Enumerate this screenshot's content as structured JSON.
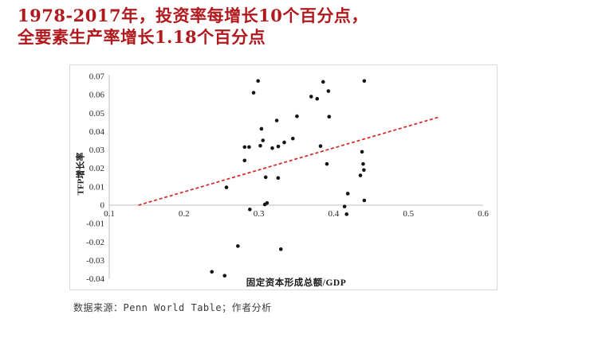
{
  "title": {
    "line1": "1978-2017年，投资率每增长10个百分点，",
    "line2": "全要素生产率增长1.18个百分点",
    "color": "#b01a1e"
  },
  "footer": {
    "source_text": "数据来源：Penn World Table；作者分析"
  },
  "chart_data": {
    "type": "scatter",
    "title": "",
    "xlabel": "固定资本形成总额/GDP",
    "ylabel": "TFP增长率",
    "xlim": [
      0.1,
      0.6
    ],
    "ylim": [
      -0.04,
      0.07
    ],
    "x_tick_labels": [
      "0.1",
      "0.2",
      "0.3",
      "0.4",
      "0.5",
      "0.6"
    ],
    "y_tick_labels": [
      "0.07",
      "0.06",
      "0.05",
      "0.04",
      "0.03",
      "0.02",
      "0.01",
      "0",
      "-0.01",
      "-0.02",
      "-0.03",
      "-0.04"
    ],
    "grid": false,
    "legend": null,
    "axis_color": "#bfbfbf",
    "point_color": "#141414",
    "points": [
      [
        0.299,
        0.0675
      ],
      [
        0.293,
        0.0611
      ],
      [
        0.386,
        0.067
      ],
      [
        0.393,
        0.062
      ],
      [
        0.441,
        0.0675
      ],
      [
        0.37,
        0.059
      ],
      [
        0.378,
        0.0578
      ],
      [
        0.351,
        0.0483
      ],
      [
        0.394,
        0.0481
      ],
      [
        0.324,
        0.046
      ],
      [
        0.3035,
        0.0415
      ],
      [
        0.3455,
        0.0362
      ],
      [
        0.3055,
        0.0352
      ],
      [
        0.334,
        0.0341
      ],
      [
        0.326,
        0.0319
      ],
      [
        0.302,
        0.0323
      ],
      [
        0.318,
        0.031
      ],
      [
        0.281,
        0.0316
      ],
      [
        0.287,
        0.0316
      ],
      [
        0.3825,
        0.0321
      ],
      [
        0.438,
        0.029
      ],
      [
        0.281,
        0.0243
      ],
      [
        0.391,
        0.0224
      ],
      [
        0.4395,
        0.0224
      ],
      [
        0.4405,
        0.0191
      ],
      [
        0.3092,
        0.0152
      ],
      [
        0.3258,
        0.0148
      ],
      [
        0.4358,
        0.0162
      ],
      [
        0.2567,
        0.0097
      ],
      [
        0.419,
        0.0063
      ],
      [
        0.441,
        0.0026
      ],
      [
        0.308,
        0.0004
      ],
      [
        0.311,
        0.0012
      ],
      [
        0.288,
        -0.0023
      ],
      [
        0.4146,
        -0.0007
      ],
      [
        0.4174,
        -0.0049
      ],
      [
        0.272,
        -0.0222
      ],
      [
        0.3295,
        -0.0239
      ],
      [
        0.2372,
        -0.0362
      ],
      [
        0.2543,
        -0.0383
      ]
    ],
    "trendline": {
      "x1": 0.139,
      "y1": 0.0,
      "x2": 0.542,
      "y2": 0.048,
      "slope_per_10pp": 1.18,
      "style": "dashed",
      "color": "#d32626"
    }
  }
}
